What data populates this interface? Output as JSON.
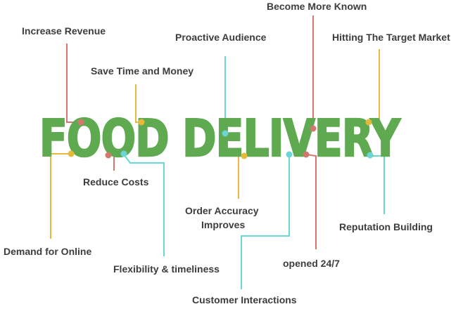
{
  "title": "FOOD DELIVERY",
  "colors": {
    "green": "#5faa50",
    "red": "#d4776e",
    "yellow": "#e6b83b",
    "cyan": "#6cd6d4",
    "text": "#3d3d3d"
  },
  "labels": {
    "become_more_known": "Become More Known",
    "increase_revenue": "Increase Revenue",
    "proactive_audience": "Proactive Audience",
    "hitting_target_market": "Hitting The Target Market",
    "save_time_money": "Save Time and Money",
    "reduce_costs": "Reduce Costs",
    "order_accuracy_line1": "Order Accuracy",
    "order_accuracy_line2": "Improves",
    "reputation_building": "Reputation Building",
    "demand_for_online": "Demand for Online",
    "flexibility": "Flexibility & timeliness",
    "opened_24_7": "opened 24/7",
    "customer_interactions": "Customer Interactions"
  }
}
